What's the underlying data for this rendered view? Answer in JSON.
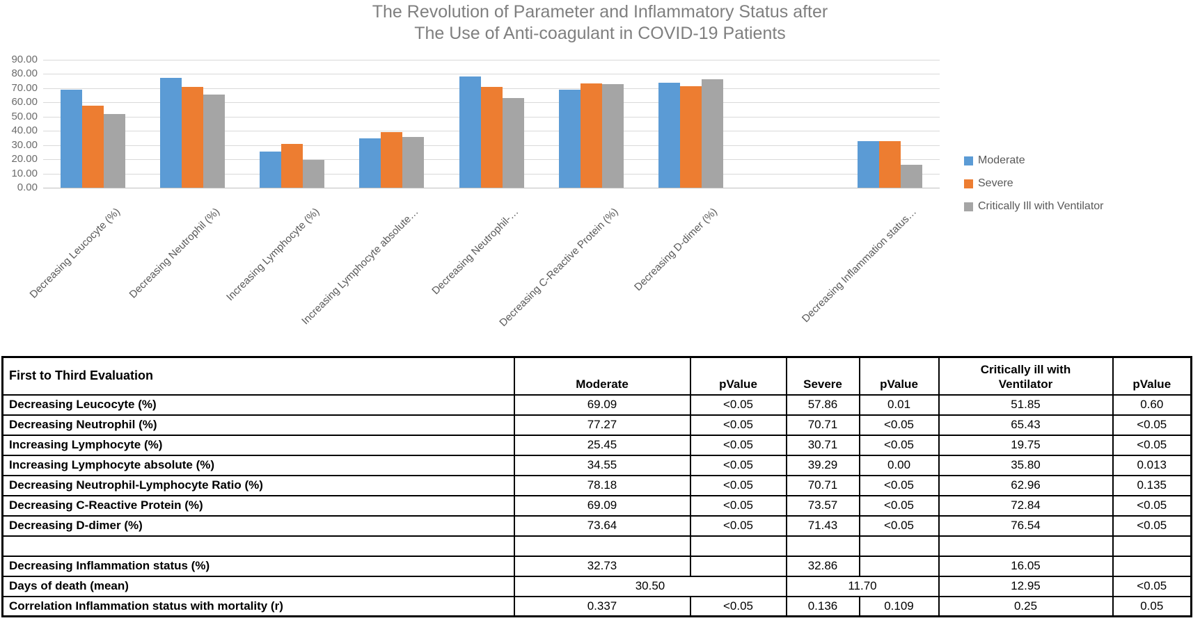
{
  "chart_data": {
    "type": "bar",
    "title": "The Revolution of Parameter and Inflammatory Status after The Use of Anti-coagulant in COVID-19 Patients",
    "title_lines": [
      "The Revolution of Parameter and Inflammatory Status after",
      "The Use of Anti-coagulant in COVID-19 Patients"
    ],
    "categories": [
      "Decreasing Leucocyte (%)",
      "Decreasing Neutrophil (%)",
      "Increasing Lymphocyte (%)",
      "Increasing Lymphocyte absolute…",
      "Decreasing Neutrophil-…",
      "Decreasing C-Reactive Protein (%)",
      "Decreasing D-dimer (%)",
      "",
      "Decreasing Inflammation status…"
    ],
    "series": [
      {
        "name": "Moderate",
        "color": "#5B9BD5",
        "values": [
          69.09,
          77.27,
          25.45,
          34.55,
          78.18,
          69.09,
          73.64,
          null,
          32.73
        ]
      },
      {
        "name": "Severe",
        "color": "#ED7D31",
        "values": [
          57.86,
          70.71,
          30.71,
          39.29,
          70.71,
          73.57,
          71.43,
          null,
          32.86
        ]
      },
      {
        "name": "Critically Ill with Ventilator",
        "color": "#A5A5A5",
        "values": [
          51.85,
          65.43,
          19.75,
          35.8,
          62.96,
          72.84,
          76.54,
          null,
          16.05
        ]
      }
    ],
    "xlabel": "",
    "ylabel": "",
    "ylim": [
      0,
      90
    ],
    "y_tick_step": 10,
    "y_tick_labels": [
      "0.00",
      "10.00",
      "20.00",
      "30.00",
      "40.00",
      "50.00",
      "60.00",
      "70.00",
      "80.00",
      "90.00"
    ],
    "grid": true,
    "legend_position": "right"
  },
  "table": {
    "corner_header": "First to Third Evaluation",
    "headers": [
      "Moderate",
      "pValue",
      "Severe",
      "pValue",
      "Critically ill with Ventilator",
      "pValue"
    ],
    "rows": [
      {
        "label": "Decreasing Leucocyte (%)",
        "cells": [
          {
            "text": "69.09"
          },
          {
            "text": "<0.05"
          },
          {
            "text": "57.86"
          },
          {
            "text": "0.01"
          },
          {
            "text": "51.85"
          },
          {
            "text": "0.60"
          }
        ]
      },
      {
        "label": "Decreasing Neutrophil (%)",
        "cells": [
          {
            "text": "77.27"
          },
          {
            "text": "<0.05"
          },
          {
            "text": "70.71"
          },
          {
            "text": "<0.05"
          },
          {
            "text": "65.43"
          },
          {
            "text": "<0.05"
          }
        ]
      },
      {
        "label": "Increasing Lymphocyte (%)",
        "cells": [
          {
            "text": "25.45"
          },
          {
            "text": "<0.05"
          },
          {
            "text": "30.71"
          },
          {
            "text": "<0.05"
          },
          {
            "text": "19.75"
          },
          {
            "text": "<0.05"
          }
        ]
      },
      {
        "label": "Increasing Lymphocyte absolute (%)",
        "cells": [
          {
            "text": "34.55"
          },
          {
            "text": "<0.05"
          },
          {
            "text": "39.29"
          },
          {
            "text": "0.00"
          },
          {
            "text": "35.80"
          },
          {
            "text": "0.013"
          }
        ]
      },
      {
        "label": "Decreasing Neutrophil-Lymphocyte Ratio (%)",
        "cells": [
          {
            "text": "78.18"
          },
          {
            "text": "<0.05"
          },
          {
            "text": "70.71"
          },
          {
            "text": "<0.05"
          },
          {
            "text": "62.96"
          },
          {
            "text": "0.135"
          }
        ]
      },
      {
        "label": "Decreasing C-Reactive Protein (%)",
        "cells": [
          {
            "text": "69.09"
          },
          {
            "text": "<0.05"
          },
          {
            "text": "73.57"
          },
          {
            "text": "<0.05"
          },
          {
            "text": "72.84"
          },
          {
            "text": "<0.05"
          }
        ]
      },
      {
        "label": "Decreasing D-dimer (%)",
        "cells": [
          {
            "text": "73.64"
          },
          {
            "text": "<0.05"
          },
          {
            "text": "71.43"
          },
          {
            "text": "<0.05"
          },
          {
            "text": "76.54"
          },
          {
            "text": "<0.05"
          }
        ]
      },
      {
        "label": "",
        "cells": [
          {
            "text": ""
          },
          {
            "text": ""
          },
          {
            "text": ""
          },
          {
            "text": ""
          },
          {
            "text": ""
          },
          {
            "text": ""
          }
        ]
      },
      {
        "label": "Decreasing Inflammation status (%)",
        "cells": [
          {
            "text": "32.73"
          },
          {
            "text": ""
          },
          {
            "text": "32.86"
          },
          {
            "text": ""
          },
          {
            "text": "16.05"
          },
          {
            "text": ""
          }
        ]
      },
      {
        "label": "Days of death (mean)",
        "cells": [
          {
            "text": "30.50",
            "span": 2
          },
          {
            "text": "11.70",
            "span": 2
          },
          {
            "text": "12.95"
          },
          {
            "text": "<0.05"
          }
        ]
      },
      {
        "label": "Correlation Inflammation status with mortality (r)",
        "cells": [
          {
            "text": "0.337"
          },
          {
            "text": "<0.05"
          },
          {
            "text": "0.136"
          },
          {
            "text": "0.109"
          },
          {
            "text": "0.25"
          },
          {
            "text": "0.05"
          }
        ]
      }
    ]
  },
  "colors": {
    "moderate": "#5B9BD5",
    "severe": "#ED7D31",
    "critically_ill": "#A5A5A5",
    "gridline": "#D9D9D9",
    "title_text": "#7F7F7F",
    "axis_text": "#595959",
    "table_border": "#000000"
  }
}
